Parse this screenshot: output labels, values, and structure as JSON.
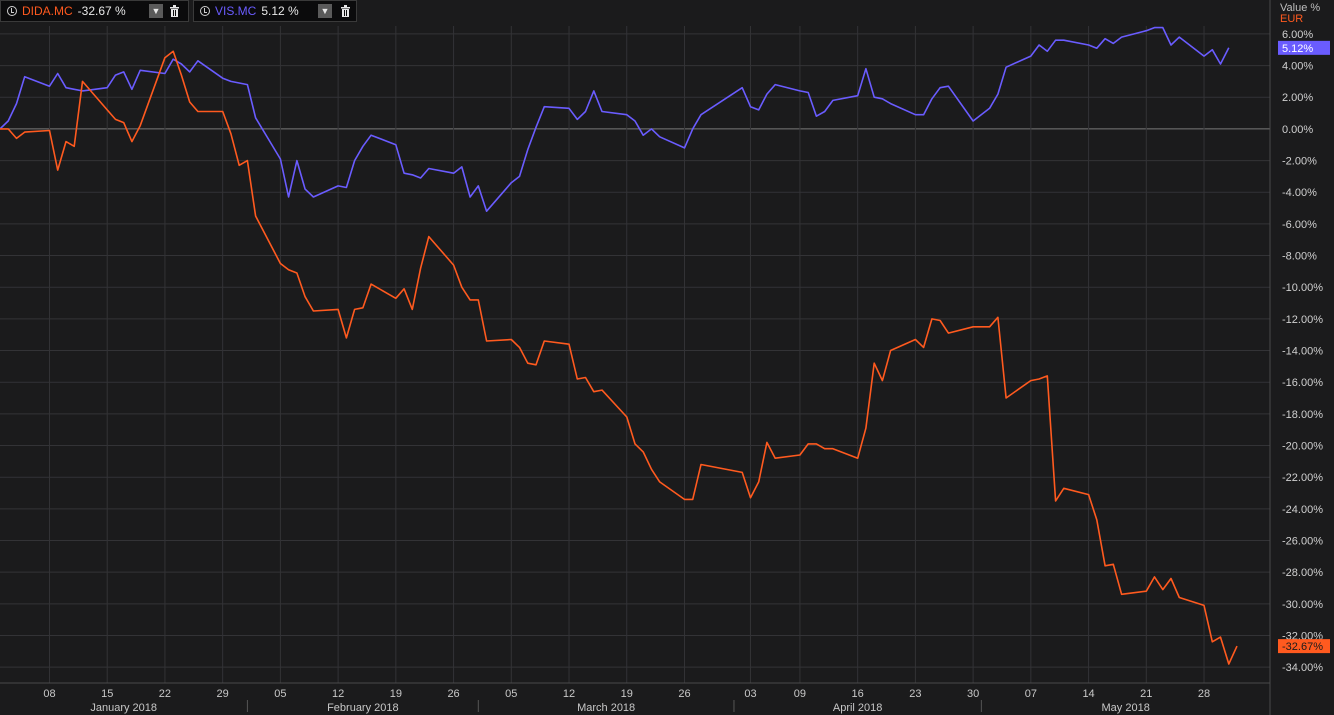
{
  "legend": [
    {
      "ticker": "DIDA.MC",
      "value": "-32.67 %",
      "color": "#ff5a1f"
    },
    {
      "ticker": "VIS.MC",
      "value": "5.12 %",
      "color": "#6a5cff"
    }
  ],
  "axis_header": {
    "value_label": "Value %",
    "currency": "EUR"
  },
  "icons": {
    "clock": "clock-icon",
    "dropdown": "chevron-down-icon",
    "delete": "trash-icon"
  },
  "colors": {
    "background": "#1b1b1c",
    "grid": "#333336",
    "zero_line": "#7a7a7a",
    "dida": "#ff5a1f",
    "vis": "#6a5cff"
  },
  "chart_data": {
    "type": "line",
    "y_unit": "%",
    "ylim": [
      -35,
      6.5
    ],
    "y_ticks": [
      6,
      4,
      2,
      0,
      -2,
      -4,
      -6,
      -8,
      -10,
      -12,
      -14,
      -16,
      -18,
      -20,
      -22,
      -24,
      -26,
      -28,
      -30,
      -32,
      -34
    ],
    "y_tick_labels": [
      "6.00%",
      "4.00%",
      "2.00%",
      "0.00%",
      "-2.00%",
      "-4.00%",
      "-6.00%",
      "-8.00%",
      "-10.00%",
      "-12.00%",
      "-14.00%",
      "-16.00%",
      "-18.00%",
      "-20.00%",
      "-22.00%",
      "-24.00%",
      "-26.00%",
      "-28.00%",
      "-30.00%",
      "-32.00%",
      "-34.00%"
    ],
    "x_start": "2018-01-02",
    "x_end": "2018-06-05",
    "x_ticks": [
      {
        "date": "2018-01-08",
        "label": "08"
      },
      {
        "date": "2018-01-15",
        "label": "15"
      },
      {
        "date": "2018-01-22",
        "label": "22"
      },
      {
        "date": "2018-01-29",
        "label": "29"
      },
      {
        "date": "2018-02-05",
        "label": "05"
      },
      {
        "date": "2018-02-12",
        "label": "12"
      },
      {
        "date": "2018-02-19",
        "label": "19"
      },
      {
        "date": "2018-02-26",
        "label": "26"
      },
      {
        "date": "2018-03-05",
        "label": "05"
      },
      {
        "date": "2018-03-12",
        "label": "12"
      },
      {
        "date": "2018-03-19",
        "label": "19"
      },
      {
        "date": "2018-03-26",
        "label": "26"
      },
      {
        "date": "2018-04-03",
        "label": "03"
      },
      {
        "date": "2018-04-09",
        "label": "09"
      },
      {
        "date": "2018-04-16",
        "label": "16"
      },
      {
        "date": "2018-04-23",
        "label": "23"
      },
      {
        "date": "2018-04-30",
        "label": "30"
      },
      {
        "date": "2018-05-07",
        "label": "07"
      },
      {
        "date": "2018-05-14",
        "label": "14"
      },
      {
        "date": "2018-05-21",
        "label": "21"
      },
      {
        "date": "2018-05-28",
        "label": "28"
      }
    ],
    "months": [
      {
        "label": "January 2018",
        "start": "2018-01-02",
        "end": "2018-02-01"
      },
      {
        "label": "February 2018",
        "start": "2018-02-01",
        "end": "2018-03-01"
      },
      {
        "label": "March 2018",
        "start": "2018-03-01",
        "end": "2018-04-01"
      },
      {
        "label": "April 2018",
        "start": "2018-04-01",
        "end": "2018-05-01"
      },
      {
        "label": "May 2018",
        "start": "2018-05-01",
        "end": "2018-06-05"
      }
    ],
    "series": [
      {
        "name": "VIS.MC",
        "last_label": "5.12%",
        "points": [
          [
            "2018-01-02",
            0
          ],
          [
            "2018-01-03",
            0.5
          ],
          [
            "2018-01-04",
            1.6
          ],
          [
            "2018-01-05",
            3.3
          ],
          [
            "2018-01-08",
            2.7
          ],
          [
            "2018-01-09",
            3.5
          ],
          [
            "2018-01-10",
            2.6
          ],
          [
            "2018-01-11",
            2.5
          ],
          [
            "2018-01-12",
            2.4
          ],
          [
            "2018-01-15",
            2.6
          ],
          [
            "2018-01-16",
            3.4
          ],
          [
            "2018-01-17",
            3.6
          ],
          [
            "2018-01-18",
            2.5
          ],
          [
            "2018-01-19",
            3.7
          ],
          [
            "2018-01-22",
            3.5
          ],
          [
            "2018-01-23",
            4.4
          ],
          [
            "2018-01-24",
            4.1
          ],
          [
            "2018-01-25",
            3.6
          ],
          [
            "2018-01-26",
            4.3
          ],
          [
            "2018-01-29",
            3.2
          ],
          [
            "2018-01-30",
            3.0
          ],
          [
            "2018-01-31",
            2.9
          ],
          [
            "2018-02-01",
            2.8
          ],
          [
            "2018-02-02",
            0.7
          ],
          [
            "2018-02-05",
            -1.9
          ],
          [
            "2018-02-06",
            -4.3
          ],
          [
            "2018-02-07",
            -2.0
          ],
          [
            "2018-02-08",
            -3.8
          ],
          [
            "2018-02-09",
            -4.3
          ],
          [
            "2018-02-12",
            -3.6
          ],
          [
            "2018-02-13",
            -3.7
          ],
          [
            "2018-02-14",
            -2.0
          ],
          [
            "2018-02-15",
            -1.1
          ],
          [
            "2018-02-16",
            -0.4
          ],
          [
            "2018-02-19",
            -1.0
          ],
          [
            "2018-02-20",
            -2.8
          ],
          [
            "2018-02-21",
            -2.9
          ],
          [
            "2018-02-22",
            -3.1
          ],
          [
            "2018-02-23",
            -2.5
          ],
          [
            "2018-02-26",
            -2.8
          ],
          [
            "2018-02-27",
            -2.4
          ],
          [
            "2018-02-28",
            -4.3
          ],
          [
            "2018-03-01",
            -3.6
          ],
          [
            "2018-03-02",
            -5.2
          ],
          [
            "2018-03-05",
            -3.4
          ],
          [
            "2018-03-06",
            -3.0
          ],
          [
            "2018-03-07",
            -1.3
          ],
          [
            "2018-03-08",
            0.1
          ],
          [
            "2018-03-09",
            1.4
          ],
          [
            "2018-03-12",
            1.3
          ],
          [
            "2018-03-13",
            0.6
          ],
          [
            "2018-03-14",
            1.1
          ],
          [
            "2018-03-15",
            2.4
          ],
          [
            "2018-03-16",
            1.1
          ],
          [
            "2018-03-19",
            0.9
          ],
          [
            "2018-03-20",
            0.5
          ],
          [
            "2018-03-21",
            -0.4
          ],
          [
            "2018-03-22",
            0.0
          ],
          [
            "2018-03-23",
            -0.5
          ],
          [
            "2018-03-26",
            -1.2
          ],
          [
            "2018-03-27",
            0.0
          ],
          [
            "2018-03-28",
            0.9
          ],
          [
            "2018-04-02",
            2.6
          ],
          [
            "2018-04-03",
            1.4
          ],
          [
            "2018-04-04",
            1.2
          ],
          [
            "2018-04-05",
            2.2
          ],
          [
            "2018-04-06",
            2.8
          ],
          [
            "2018-04-09",
            2.4
          ],
          [
            "2018-04-10",
            2.3
          ],
          [
            "2018-04-11",
            0.8
          ],
          [
            "2018-04-12",
            1.1
          ],
          [
            "2018-04-13",
            1.8
          ],
          [
            "2018-04-16",
            2.1
          ],
          [
            "2018-04-17",
            3.8
          ],
          [
            "2018-04-18",
            2.0
          ],
          [
            "2018-04-19",
            1.9
          ],
          [
            "2018-04-20",
            1.6
          ],
          [
            "2018-04-23",
            0.9
          ],
          [
            "2018-04-24",
            0.9
          ],
          [
            "2018-04-25",
            1.9
          ],
          [
            "2018-04-26",
            2.6
          ],
          [
            "2018-04-27",
            2.7
          ],
          [
            "2018-04-30",
            0.5
          ],
          [
            "2018-05-02",
            1.3
          ],
          [
            "2018-05-03",
            2.2
          ],
          [
            "2018-05-04",
            3.9
          ],
          [
            "2018-05-07",
            4.6
          ],
          [
            "2018-05-08",
            5.3
          ],
          [
            "2018-05-09",
            4.9
          ],
          [
            "2018-05-10",
            5.6
          ],
          [
            "2018-05-11",
            5.6
          ],
          [
            "2018-05-14",
            5.3
          ],
          [
            "2018-05-15",
            5.1
          ],
          [
            "2018-05-16",
            5.7
          ],
          [
            "2018-05-17",
            5.4
          ],
          [
            "2018-05-18",
            5.8
          ],
          [
            "2018-05-21",
            6.2
          ],
          [
            "2018-05-22",
            6.4
          ],
          [
            "2018-05-23",
            6.4
          ],
          [
            "2018-05-24",
            5.3
          ],
          [
            "2018-05-25",
            5.8
          ],
          [
            "2018-05-28",
            4.6
          ],
          [
            "2018-05-29",
            5.0
          ],
          [
            "2018-05-30",
            4.1
          ],
          [
            "2018-05-31",
            5.12
          ]
        ]
      },
      {
        "name": "DIDA.MC",
        "last_label": "-32.67%",
        "points": [
          [
            "2018-01-02",
            0
          ],
          [
            "2018-01-03",
            0
          ],
          [
            "2018-01-04",
            -0.6
          ],
          [
            "2018-01-05",
            -0.2
          ],
          [
            "2018-01-08",
            -0.1
          ],
          [
            "2018-01-09",
            -2.6
          ],
          [
            "2018-01-10",
            -0.8
          ],
          [
            "2018-01-11",
            -1.1
          ],
          [
            "2018-01-12",
            3.0
          ],
          [
            "2018-01-15",
            1.2
          ],
          [
            "2018-01-16",
            0.6
          ],
          [
            "2018-01-17",
            0.4
          ],
          [
            "2018-01-18",
            -0.8
          ],
          [
            "2018-01-19",
            0.2
          ],
          [
            "2018-01-22",
            4.5
          ],
          [
            "2018-01-23",
            4.9
          ],
          [
            "2018-01-24",
            3.4
          ],
          [
            "2018-01-25",
            1.7
          ],
          [
            "2018-01-26",
            1.1
          ],
          [
            "2018-01-29",
            1.1
          ],
          [
            "2018-01-30",
            -0.3
          ],
          [
            "2018-01-31",
            -2.3
          ],
          [
            "2018-02-01",
            -2.0
          ],
          [
            "2018-02-02",
            -5.5
          ],
          [
            "2018-02-05",
            -8.5
          ],
          [
            "2018-02-06",
            -8.9
          ],
          [
            "2018-02-07",
            -9.1
          ],
          [
            "2018-02-08",
            -10.6
          ],
          [
            "2018-02-09",
            -11.5
          ],
          [
            "2018-02-12",
            -11.4
          ],
          [
            "2018-02-13",
            -13.2
          ],
          [
            "2018-02-14",
            -11.4
          ],
          [
            "2018-02-15",
            -11.3
          ],
          [
            "2018-02-16",
            -9.8
          ],
          [
            "2018-02-19",
            -10.7
          ],
          [
            "2018-02-20",
            -10.1
          ],
          [
            "2018-02-21",
            -11.4
          ],
          [
            "2018-02-22",
            -8.8
          ],
          [
            "2018-02-23",
            -6.8
          ],
          [
            "2018-02-26",
            -8.6
          ],
          [
            "2018-02-27",
            -10.0
          ],
          [
            "2018-02-28",
            -10.8
          ],
          [
            "2018-03-01",
            -10.8
          ],
          [
            "2018-03-02",
            -13.4
          ],
          [
            "2018-03-05",
            -13.3
          ],
          [
            "2018-03-06",
            -13.8
          ],
          [
            "2018-03-07",
            -14.8
          ],
          [
            "2018-03-08",
            -14.9
          ],
          [
            "2018-03-09",
            -13.4
          ],
          [
            "2018-03-12",
            -13.6
          ],
          [
            "2018-03-13",
            -15.8
          ],
          [
            "2018-03-14",
            -15.7
          ],
          [
            "2018-03-15",
            -16.6
          ],
          [
            "2018-03-16",
            -16.5
          ],
          [
            "2018-03-19",
            -18.2
          ],
          [
            "2018-03-20",
            -19.9
          ],
          [
            "2018-03-21",
            -20.4
          ],
          [
            "2018-03-22",
            -21.5
          ],
          [
            "2018-03-23",
            -22.3
          ],
          [
            "2018-03-26",
            -23.4
          ],
          [
            "2018-03-27",
            -23.4
          ],
          [
            "2018-03-28",
            -21.2
          ],
          [
            "2018-04-02",
            -21.7
          ],
          [
            "2018-04-03",
            -23.3
          ],
          [
            "2018-04-04",
            -22.3
          ],
          [
            "2018-04-05",
            -19.8
          ],
          [
            "2018-04-06",
            -20.8
          ],
          [
            "2018-04-09",
            -20.6
          ],
          [
            "2018-04-10",
            -19.9
          ],
          [
            "2018-04-11",
            -19.9
          ],
          [
            "2018-04-12",
            -20.2
          ],
          [
            "2018-04-13",
            -20.2
          ],
          [
            "2018-04-16",
            -20.8
          ],
          [
            "2018-04-17",
            -18.9
          ],
          [
            "2018-04-18",
            -14.8
          ],
          [
            "2018-04-19",
            -15.9
          ],
          [
            "2018-04-20",
            -14.0
          ],
          [
            "2018-04-23",
            -13.3
          ],
          [
            "2018-04-24",
            -13.8
          ],
          [
            "2018-04-25",
            -12.0
          ],
          [
            "2018-04-26",
            -12.1
          ],
          [
            "2018-04-27",
            -12.9
          ],
          [
            "2018-04-30",
            -12.5
          ],
          [
            "2018-05-02",
            -12.5
          ],
          [
            "2018-05-03",
            -11.9
          ],
          [
            "2018-05-04",
            -17.0
          ],
          [
            "2018-05-07",
            -15.9
          ],
          [
            "2018-05-08",
            -15.8
          ],
          [
            "2018-05-09",
            -15.6
          ],
          [
            "2018-05-10",
            -23.5
          ],
          [
            "2018-05-11",
            -22.7
          ],
          [
            "2018-05-14",
            -23.1
          ],
          [
            "2018-05-15",
            -24.7
          ],
          [
            "2018-05-16",
            -27.6
          ],
          [
            "2018-05-17",
            -27.5
          ],
          [
            "2018-05-18",
            -29.4
          ],
          [
            "2018-05-21",
            -29.2
          ],
          [
            "2018-05-22",
            -28.3
          ],
          [
            "2018-05-23",
            -29.1
          ],
          [
            "2018-05-24",
            -28.4
          ],
          [
            "2018-05-25",
            -29.6
          ],
          [
            "2018-05-28",
            -30.1
          ],
          [
            "2018-05-29",
            -32.4
          ],
          [
            "2018-05-30",
            -32.1
          ],
          [
            "2018-05-31",
            -33.8
          ],
          [
            "2018-06-01",
            -32.67
          ]
        ]
      }
    ]
  }
}
